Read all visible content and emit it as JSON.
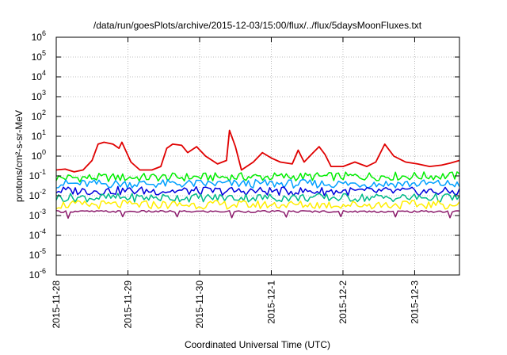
{
  "chart_data": {
    "type": "line",
    "title": "/data/run/goesPlots/archive/2015-12-03/15:00/flux/../flux/5daysMoonFluxes.txt",
    "xlabel": "Coordinated Universal Time (UTC)",
    "ylabel": "protons/cm²-s-sr-MeV",
    "yscale": "log",
    "ylim": [
      1e-06,
      1000000.0
    ],
    "xlim": [
      "2015-11-28T00:00",
      "2015-12-03T15:00"
    ],
    "grid": true,
    "x_ticks": [
      "2015-11-28",
      "2015-11-29",
      "2015-11-30",
      "2015-12-1",
      "2015-12-2",
      "2015-12-3"
    ],
    "y_ticks": [
      {
        "base": "10",
        "exp": "-6"
      },
      {
        "base": "10",
        "exp": "-5"
      },
      {
        "base": "10",
        "exp": "-4"
      },
      {
        "base": "10",
        "exp": "-3"
      },
      {
        "base": "10",
        "exp": "-2"
      },
      {
        "base": "10",
        "exp": "-1"
      },
      {
        "base": "10",
        "exp": "0"
      },
      {
        "base": "10",
        "exp": "1"
      },
      {
        "base": "10",
        "exp": "2"
      },
      {
        "base": "10",
        "exp": "3"
      },
      {
        "base": "10",
        "exp": "4"
      },
      {
        "base": "10",
        "exp": "5"
      },
      {
        "base": "10",
        "exp": "6"
      }
    ],
    "series": [
      {
        "color": "#e00000",
        "points": [
          [
            "2015-11-28T00:00",
            0.2
          ],
          [
            "2015-11-28T03:00",
            0.22
          ],
          [
            "2015-11-28T06:00",
            0.16
          ],
          [
            "2015-11-28T09:00",
            0.2
          ],
          [
            "2015-11-28T12:00",
            0.6
          ],
          [
            "2015-11-28T14:00",
            4.0
          ],
          [
            "2015-11-28T16:00",
            5.0
          ],
          [
            "2015-11-28T19:00",
            4.0
          ],
          [
            "2015-11-28T21:00",
            2.5
          ],
          [
            "2015-11-28T22:00",
            5.0
          ],
          [
            "2015-11-29T01:00",
            0.5
          ],
          [
            "2015-11-29T04:00",
            0.2
          ],
          [
            "2015-11-29T08:00",
            0.2
          ],
          [
            "2015-11-29T11:00",
            0.3
          ],
          [
            "2015-11-29T13:00",
            2.5
          ],
          [
            "2015-11-29T15:00",
            4.0
          ],
          [
            "2015-11-29T18:00",
            3.5
          ],
          [
            "2015-11-29T20:00",
            1.5
          ],
          [
            "2015-11-29T23:00",
            3.0
          ],
          [
            "2015-11-30T02:00",
            1.0
          ],
          [
            "2015-11-30T06:00",
            0.4
          ],
          [
            "2015-11-30T09:00",
            0.6
          ],
          [
            "2015-11-30T10:00",
            20.0
          ],
          [
            "2015-11-30T12:00",
            3.0
          ],
          [
            "2015-11-30T14:00",
            0.2
          ],
          [
            "2015-11-30T18:00",
            0.5
          ],
          [
            "2015-11-30T21:00",
            1.5
          ],
          [
            "2015-12-01T00:00",
            0.8
          ],
          [
            "2015-12-01T03:00",
            0.5
          ],
          [
            "2015-12-01T07:00",
            0.4
          ],
          [
            "2015-12-01T09:00",
            2.0
          ],
          [
            "2015-12-01T11:00",
            0.5
          ],
          [
            "2015-12-01T14:00",
            1.5
          ],
          [
            "2015-12-01T16:00",
            3.0
          ],
          [
            "2015-12-01T18:00",
            1.2
          ],
          [
            "2015-12-01T20:00",
            0.3
          ],
          [
            "2015-12-02T00:00",
            0.3
          ],
          [
            "2015-12-02T04:00",
            0.5
          ],
          [
            "2015-12-02T08:00",
            0.3
          ],
          [
            "2015-12-02T11:00",
            0.5
          ],
          [
            "2015-12-02T14:00",
            4.0
          ],
          [
            "2015-12-02T17:00",
            1.0
          ],
          [
            "2015-12-02T21:00",
            0.5
          ],
          [
            "2015-12-03T01:00",
            0.4
          ],
          [
            "2015-12-03T05:00",
            0.3
          ],
          [
            "2015-12-03T09:00",
            0.35
          ],
          [
            "2015-12-03T12:00",
            0.45
          ],
          [
            "2015-12-03T15:00",
            0.6
          ]
        ]
      },
      {
        "color": "#00ee00",
        "points": [
          [
            "2015-11-28T00:00",
            0.08
          ],
          [
            "2015-12-03T15:00",
            0.1
          ]
        ]
      },
      {
        "color": "#00a0ff",
        "points": [
          [
            "2015-11-28T00:00",
            0.04
          ],
          [
            "2015-12-03T15:00",
            0.04
          ]
        ]
      },
      {
        "color": "#0000dd",
        "points": [
          [
            "2015-11-28T00:00",
            0.018
          ],
          [
            "2015-12-03T15:00",
            0.016
          ]
        ]
      },
      {
        "color": "#00bb88",
        "points": [
          [
            "2015-11-28T00:00",
            0.008
          ],
          [
            "2015-12-03T15:00",
            0.008
          ]
        ]
      },
      {
        "color": "#ffee00",
        "points": [
          [
            "2015-11-28T00:00",
            0.0035
          ],
          [
            "2015-12-03T15:00",
            0.0035
          ]
        ]
      },
      {
        "color": "#8b1a6b",
        "points": [
          [
            "2015-11-28T00:00",
            0.0016
          ],
          [
            "2015-12-03T15:00",
            0.0016
          ]
        ]
      }
    ]
  }
}
